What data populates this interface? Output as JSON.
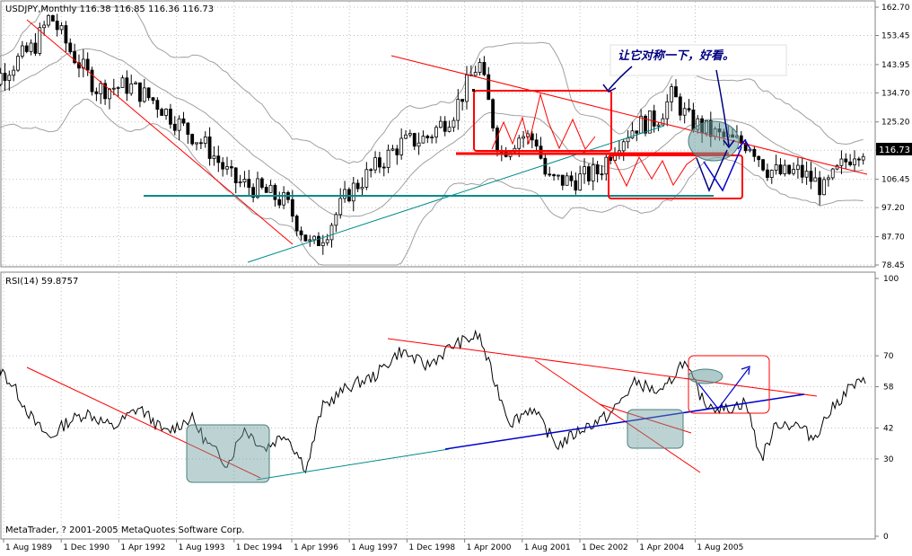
{
  "price_panel": {
    "header": "USDJPY,Monthly  116.38 116.85 116.36 116.73",
    "current_label": "116.73",
    "annotation": "让它对称一下，好看。"
  },
  "rsi_panel": {
    "header": "RSI(14) 59.8757"
  },
  "copyright": "MetaTrader, ? 2001-2005 MetaQuotes Software Corp.",
  "colors": {
    "background": "#ffffff",
    "frame": "#808080",
    "grid": "#c0c0c0",
    "candle": "#000000",
    "bollinger": "#a0a0a0",
    "trend_red": "#ff0000",
    "trend_teal": "#008b8b",
    "trend_blue": "#0000cd",
    "annotation_blue": "#000080",
    "highlight_fill": "#6d9e9e"
  },
  "chart_data": [
    {
      "type": "candlestick",
      "title": "USDJPY,Monthly",
      "ylim": [
        78.45,
        162.7
      ],
      "yticks": [
        162.7,
        153.45,
        143.95,
        134.7,
        125.2,
        115.95,
        106.45,
        97.2,
        87.7,
        78.45
      ],
      "x_ticks": [
        "1 Aug 1989",
        "1 Dec 1990",
        "1 Apr 1992",
        "1 Aug 1993",
        "1 Dec 1994",
        "1 Apr 1996",
        "1 Aug 1997",
        "1 Dec 1998",
        "1 Apr 2000",
        "1 Aug 2001",
        "1 Dec 2002",
        "1 Apr 2004",
        "1 Aug 2005"
      ],
      "path_points": [
        [
          1988.8,
          130
        ],
        [
          1989.3,
          140
        ],
        [
          1990.0,
          150
        ],
        [
          1990.3,
          160
        ],
        [
          1990.7,
          148
        ],
        [
          1991.2,
          136
        ],
        [
          1991.8,
          137
        ],
        [
          1992.3,
          132
        ],
        [
          1992.8,
          124
        ],
        [
          1993.3,
          117
        ],
        [
          1993.8,
          106
        ],
        [
          1994.3,
          103
        ],
        [
          1994.8,
          99
        ],
        [
          1995.3,
          84
        ],
        [
          1995.6,
          90
        ],
        [
          1996.0,
          102
        ],
        [
          1996.5,
          110
        ],
        [
          1997.0,
          118
        ],
        [
          1997.5,
          120
        ],
        [
          1998.0,
          128
        ],
        [
          1998.5,
          145
        ],
        [
          1998.9,
          115
        ],
        [
          1999.3,
          121
        ],
        [
          1999.6,
          119
        ],
        [
          1999.8,
          106
        ],
        [
          2000.3,
          106
        ],
        [
          2000.8,
          109
        ],
        [
          2001.1,
          118
        ],
        [
          2001.5,
          124
        ],
        [
          2001.9,
          126
        ],
        [
          2002.2,
          134
        ],
        [
          2002.5,
          126
        ],
        [
          2002.9,
          122
        ],
        [
          2003.3,
          119
        ],
        [
          2003.7,
          118
        ],
        [
          2004.0,
          110
        ],
        [
          2004.3,
          108
        ],
        [
          2004.6,
          109
        ],
        [
          2004.9,
          106
        ],
        [
          2005.1,
          103
        ],
        [
          2005.4,
          110
        ],
        [
          2005.7,
          116
        ],
        [
          2005.9,
          116.73
        ]
      ]
    },
    {
      "type": "line",
      "title": "RSI(14)",
      "ylim": [
        0,
        100
      ],
      "yticks": [
        100,
        70,
        58,
        42,
        30,
        0
      ],
      "last_value": 59.8757,
      "values": [
        [
          1988.8,
          48
        ],
        [
          1989.0,
          52
        ],
        [
          1989.3,
          66
        ],
        [
          1989.6,
          58
        ],
        [
          1990.0,
          44
        ],
        [
          1990.3,
          38
        ],
        [
          1990.6,
          44
        ],
        [
          1991.0,
          48
        ],
        [
          1991.5,
          42
        ],
        [
          1992.0,
          50
        ],
        [
          1992.5,
          40
        ],
        [
          1993.0,
          46
        ],
        [
          1993.3,
          36
        ],
        [
          1993.7,
          28
        ],
        [
          1994.0,
          42
        ],
        [
          1994.4,
          34
        ],
        [
          1994.8,
          40
        ],
        [
          1995.2,
          26
        ],
        [
          1995.5,
          50
        ],
        [
          1996.0,
          58
        ],
        [
          1996.5,
          62
        ],
        [
          1997.0,
          72
        ],
        [
          1997.5,
          66
        ],
        [
          1998.0,
          74
        ],
        [
          1998.5,
          78
        ],
        [
          1998.8,
          60
        ],
        [
          1999.1,
          44
        ],
        [
          1999.5,
          50
        ],
        [
          2000.0,
          35
        ],
        [
          2000.5,
          42
        ],
        [
          2001.0,
          47
        ],
        [
          2001.5,
          60
        ],
        [
          2002.0,
          55
        ],
        [
          2002.4,
          68
        ],
        [
          2002.8,
          52
        ],
        [
          2003.2,
          49
        ],
        [
          2003.6,
          52
        ],
        [
          2003.9,
          30
        ],
        [
          2004.2,
          44
        ],
        [
          2004.6,
          43
        ],
        [
          2004.9,
          38
        ],
        [
          2005.2,
          48
        ],
        [
          2005.6,
          58
        ],
        [
          2005.9,
          59.8757
        ]
      ]
    }
  ]
}
